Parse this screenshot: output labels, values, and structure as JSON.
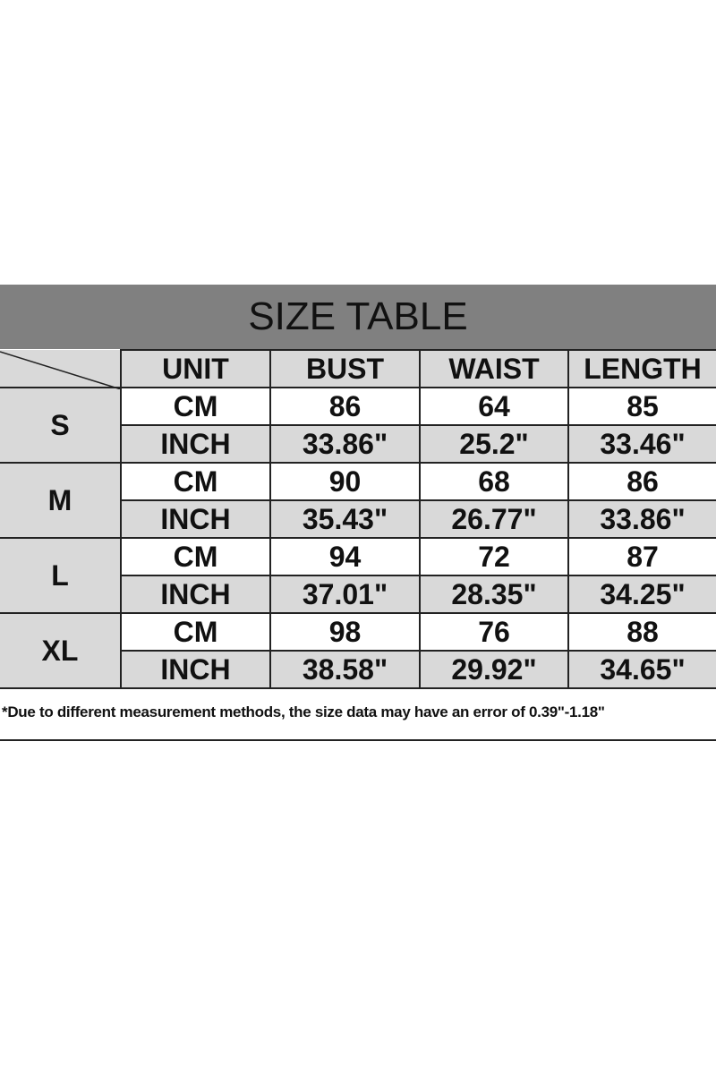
{
  "title": "SIZE TABLE",
  "headers": [
    "UNIT",
    "BUST",
    "WAIST",
    "LENGTH"
  ],
  "rows": [
    {
      "size": "S",
      "cm": [
        "CM",
        "86",
        "64",
        "85"
      ],
      "inch": [
        "INCH",
        "33.86\"",
        "25.2\"",
        "33.46\""
      ]
    },
    {
      "size": "M",
      "cm": [
        "CM",
        "90",
        "68",
        "86"
      ],
      "inch": [
        "INCH",
        "35.43\"",
        "26.77\"",
        "33.86\""
      ]
    },
    {
      "size": "L",
      "cm": [
        "CM",
        "94",
        "72",
        "87"
      ],
      "inch": [
        "INCH",
        "37.01\"",
        "28.35\"",
        "34.25\""
      ]
    },
    {
      "size": "XL",
      "cm": [
        "CM",
        "98",
        "76",
        "88"
      ],
      "inch": [
        "INCH",
        "38.58\"",
        "29.92\"",
        "34.65\""
      ]
    }
  ],
  "note": "*Due to different measurement methods, the size data may have an error of 0.39\"-1.18\"",
  "colors": {
    "title_bg": "#808080",
    "cell_gray": "#d9d9d9"
  }
}
